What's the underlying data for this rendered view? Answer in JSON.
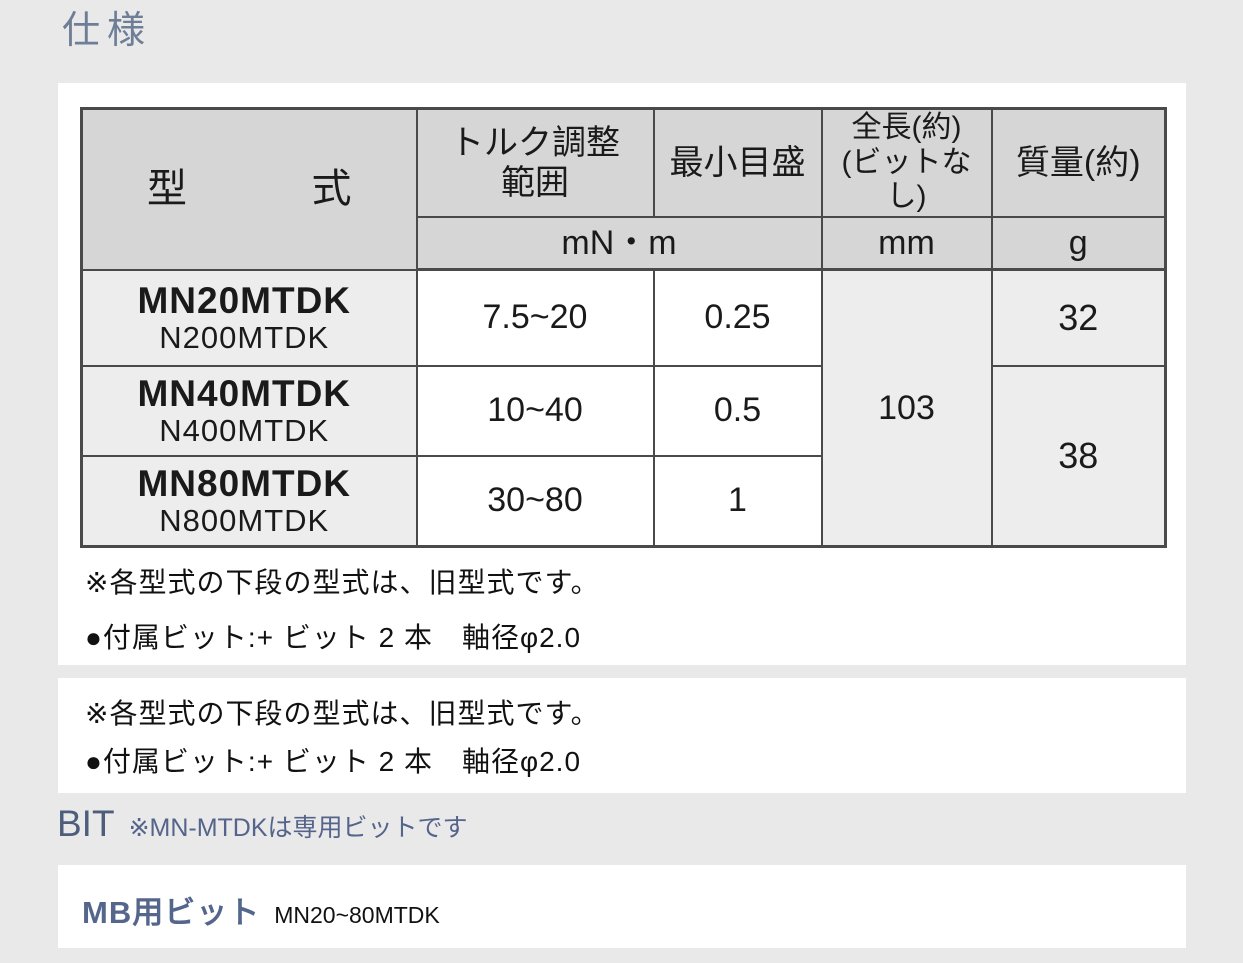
{
  "page": {
    "title": "仕様"
  },
  "spec_table": {
    "headers": {
      "model": "型式",
      "torque_range": "トルク調整\n範囲",
      "min_scale": "最小目盛",
      "overall_length": "全長(約)\n(ビットなし)",
      "mass": "質量(約)"
    },
    "units": {
      "torque_minscale": "mN・m",
      "length": "mm",
      "mass": "g"
    },
    "rows": [
      {
        "model": "MN20MTDK",
        "old_model": "N200MTDK",
        "torque_range": "7.5~20",
        "min_scale": "0.25"
      },
      {
        "model": "MN40MTDK",
        "old_model": "N400MTDK",
        "torque_range": "10~40",
        "min_scale": "0.5"
      },
      {
        "model": "MN80MTDK",
        "old_model": "N800MTDK",
        "torque_range": "30~80",
        "min_scale": "1"
      }
    ],
    "merged": {
      "length_all_rows": "103",
      "mass_row1": "32",
      "mass_rows2_3": "38"
    }
  },
  "notes": {
    "old_model_note": "※各型式の下段の型式は、旧型式です。",
    "included_bit_note": "●付属ビット:+ ビット 2 本　軸径φ2.0"
  },
  "bit_section": {
    "heading": "BIT",
    "note": "※MN-MTDKは専用ビットです",
    "item_title": "MB用ビット",
    "item_models": "MN20~80MTDK"
  }
}
